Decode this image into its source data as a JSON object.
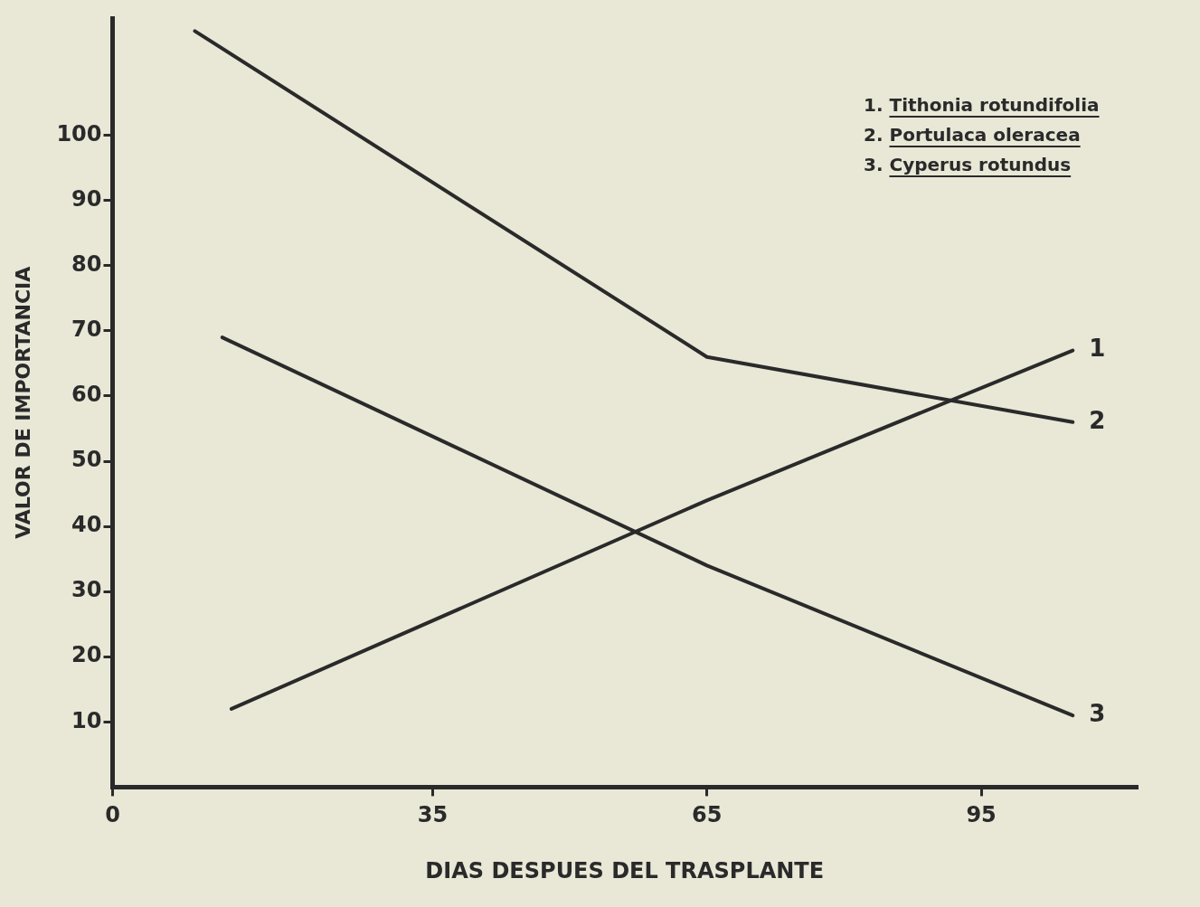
{
  "chart_data": {
    "type": "line",
    "xlabel": "DIAS DESPUES DEL TRASPLANTE",
    "ylabel": "VALOR DE IMPORTANCIA",
    "series": [
      {
        "name": "1",
        "color": "#2a2a2a",
        "x": [
          13,
          65,
          105
        ],
        "values": [
          12,
          44,
          67
        ]
      },
      {
        "name": "2",
        "color": "#2a2a2a",
        "x": [
          9,
          65,
          105
        ],
        "values": [
          116,
          66,
          56
        ]
      },
      {
        "name": "3",
        "color": "#2a2a2a",
        "x": [
          12,
          65,
          105
        ],
        "values": [
          69,
          34,
          11
        ]
      }
    ],
    "annotations": [
      "1. Tithonia rotundifolia",
      "2. Portulaca oleracea",
      "3. Cyperus rotundus"
    ],
    "xlim": [
      0,
      112
    ],
    "xticks": [
      0,
      35,
      65,
      95
    ],
    "ylim": [
      0,
      118
    ],
    "yticks": [
      10,
      20,
      30,
      40,
      50,
      60,
      70,
      80,
      90,
      100
    ],
    "grid": false,
    "marker": "none",
    "line_style": "solid"
  }
}
